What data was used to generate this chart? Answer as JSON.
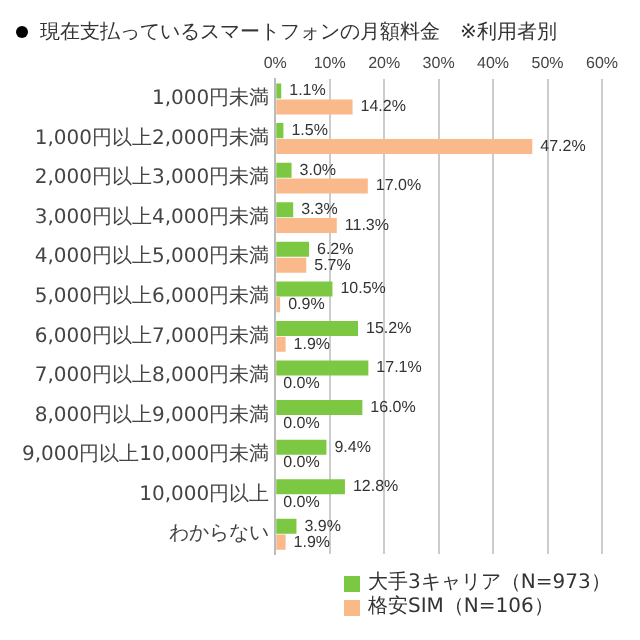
{
  "chart_data": {
    "type": "bar",
    "orientation": "horizontal",
    "title": "現在支払っているスマートフォンの月額料金　※利用者別",
    "categories": [
      "1,000円未満",
      "1,000円以上2,000円未満",
      "2,000円以上3,000円未満",
      "3,000円以上4,000円未満",
      "4,000円以上5,000円未満",
      "5,000円以上6,000円未満",
      "6,000円以上7,000円未満",
      "7,000円以上8,000円未満",
      "8,000円以上9,000円未満",
      "9,000円以上10,000円未満",
      "10,000円以上",
      "わからない"
    ],
    "series": [
      {
        "name": "大手3キャリア（N=973）",
        "color": "#7dc843",
        "values": [
          1.1,
          1.5,
          3.0,
          3.3,
          6.2,
          10.5,
          15.2,
          17.1,
          16.0,
          9.4,
          12.8,
          3.9
        ],
        "value_labels": [
          "1.1%",
          "1.5%",
          "3.0%",
          "3.3%",
          "6.2%",
          "10.5%",
          "15.2%",
          "17.1%",
          "16.0%",
          "9.4%",
          "12.8%",
          "3.9%"
        ]
      },
      {
        "name": "格安SIM（N=106）",
        "color": "#f9b98a",
        "values": [
          14.2,
          47.2,
          17.0,
          11.3,
          5.7,
          0.9,
          1.9,
          0.0,
          0.0,
          0.0,
          0.0,
          1.9
        ],
        "value_labels": [
          "14.2%",
          "47.2%",
          "17.0%",
          "11.3%",
          "5.7%",
          "0.9%",
          "1.9%",
          "0.0%",
          "0.0%",
          "0.0%",
          "0.0%",
          "1.9%"
        ]
      }
    ],
    "xlim": [
      0,
      60
    ],
    "xticks": [
      {
        "value": 0,
        "label": "0%"
      },
      {
        "value": 10,
        "label": "10%"
      },
      {
        "value": 20,
        "label": "20%"
      },
      {
        "value": 30,
        "label": "30%"
      },
      {
        "value": 40,
        "label": "40%"
      },
      {
        "value": 50,
        "label": "50%"
      },
      {
        "value": 60,
        "label": "60%"
      }
    ],
    "grid": "x",
    "legend": "bottom right"
  }
}
